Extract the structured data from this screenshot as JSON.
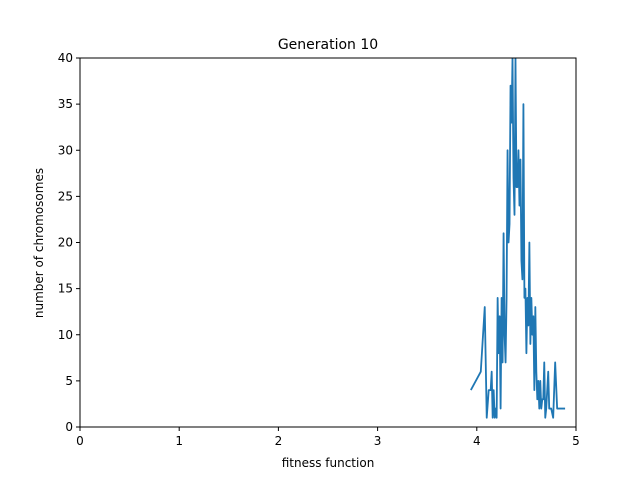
{
  "chart_data": {
    "type": "line",
    "title": "Generation 10",
    "xlabel": "fitness function",
    "ylabel": "number of chromosomes",
    "xlim": [
      0,
      5
    ],
    "ylim": [
      0,
      40
    ],
    "xticks": [
      0,
      1,
      2,
      3,
      4,
      5
    ],
    "yticks": [
      0,
      5,
      10,
      15,
      20,
      25,
      30,
      35,
      40
    ],
    "grid": false,
    "series": [
      {
        "color": "#1f77b4",
        "x": [
          3.94,
          4.04,
          4.08,
          4.1,
          4.12,
          4.14,
          4.15,
          4.16,
          4.17,
          4.18,
          4.19,
          4.2,
          4.21,
          4.22,
          4.23,
          4.24,
          4.25,
          4.26,
          4.27,
          4.28,
          4.29,
          4.3,
          4.31,
          4.32,
          4.33,
          4.34,
          4.35,
          4.36,
          4.37,
          4.38,
          4.39,
          4.4,
          4.41,
          4.42,
          4.43,
          4.44,
          4.45,
          4.46,
          4.47,
          4.48,
          4.49,
          4.5,
          4.51,
          4.52,
          4.53,
          4.54,
          4.55,
          4.56,
          4.57,
          4.58,
          4.59,
          4.6,
          4.61,
          4.62,
          4.63,
          4.64,
          4.65,
          4.66,
          4.67,
          4.68,
          4.69,
          4.7,
          4.71,
          4.72,
          4.73,
          4.75,
          4.77,
          4.79,
          4.81,
          4.83,
          4.86,
          4.89
        ],
        "y": [
          4,
          6,
          13,
          1,
          4,
          4,
          6,
          1,
          4,
          1,
          2,
          1,
          14,
          8,
          12,
          2,
          14,
          7,
          21,
          10,
          7,
          14,
          30,
          20,
          22,
          37,
          33,
          40,
          27,
          23,
          40,
          26,
          26,
          30,
          24,
          29,
          18,
          16,
          35,
          14,
          15,
          8,
          14,
          11,
          20,
          9,
          14,
          10,
          12,
          4,
          13,
          6,
          3,
          5,
          2,
          5,
          2,
          3,
          3,
          7,
          1,
          2,
          4,
          6,
          2,
          2,
          1,
          7,
          2,
          2,
          2,
          2
        ]
      }
    ]
  }
}
